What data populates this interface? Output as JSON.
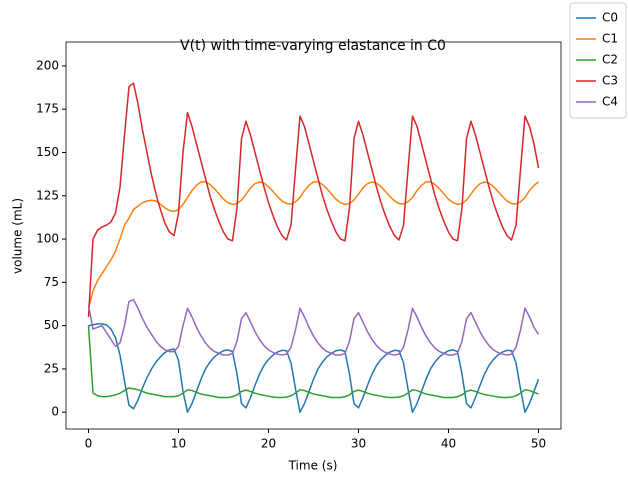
{
  "chart_data": {
    "type": "line",
    "title": "V(t) with time-varying elastance in C0",
    "x_label": "Time (s)",
    "y_label": "volume (mL)",
    "x": [
      0,
      0.5,
      1,
      1.5,
      2,
      2.5,
      3,
      3.5,
      4,
      4.5,
      5,
      5.5,
      6,
      6.5,
      7,
      7.5,
      8,
      8.5,
      9,
      9.5,
      10,
      10.5,
      11,
      11.5,
      12,
      12.5,
      13,
      13.5,
      14,
      14.5,
      15,
      15.5,
      16,
      16.5,
      17,
      17.5,
      18,
      18.5,
      19,
      19.5,
      20,
      20.5,
      21,
      21.5,
      22,
      22.5,
      23,
      23.5,
      24,
      24.5,
      25,
      25.5,
      26,
      26.5,
      27,
      27.5,
      28,
      28.5,
      29,
      29.5,
      30,
      30.5,
      31,
      31.5,
      32,
      32.5,
      33,
      33.5,
      34,
      34.5,
      35,
      35.5,
      36,
      36.5,
      37,
      37.5,
      38,
      38.5,
      39,
      39.5,
      40,
      40.5,
      41,
      41.5,
      42,
      42.5,
      43,
      43.5,
      44,
      44.5,
      45,
      45.5,
      46,
      46.5,
      47,
      47.5,
      48,
      48.5,
      49,
      49.5,
      50
    ],
    "series": [
      {
        "name": "C0",
        "color": "#1f77b4",
        "values": [
          50,
          50.5,
          51,
          51,
          50.5,
          48,
          43,
          33,
          18,
          4,
          2,
          7,
          14,
          20,
          25,
          29,
          32,
          34.5,
          36,
          36.5,
          30,
          12,
          0,
          5,
          12,
          19,
          25,
          29,
          32,
          34,
          35.5,
          36,
          35,
          22,
          5,
          2.5,
          8.5,
          15.5,
          22,
          27,
          30.5,
          33,
          34.75,
          35.75,
          35.5,
          28.5,
          13.5,
          0,
          5,
          12,
          19,
          25,
          29,
          32,
          34,
          35.5,
          36,
          35,
          22,
          5,
          2.5,
          8.5,
          15.5,
          22,
          27,
          30.5,
          33,
          34.75,
          35.75,
          35.5,
          28.5,
          13.5,
          0,
          5,
          12,
          19,
          25,
          29,
          32,
          34,
          35.5,
          36,
          35,
          22,
          5,
          2.5,
          8.5,
          15.5,
          22,
          27,
          30.5,
          33,
          34.75,
          35.75,
          35.5,
          28.5,
          13.5,
          0,
          5,
          12,
          19
        ]
      },
      {
        "name": "C1",
        "color": "#ff7f0e",
        "values": [
          60,
          70,
          76,
          80,
          84,
          88,
          93,
          100,
          108,
          112,
          117,
          119,
          121,
          122,
          122.5,
          122,
          120,
          118,
          116.5,
          116,
          117,
          120,
          124,
          128,
          131,
          133,
          133,
          131.5,
          129,
          126,
          123,
          121,
          120,
          120.5,
          122.5,
          126,
          129.5,
          132,
          133,
          132.25,
          130.25,
          127.5,
          124.5,
          122,
          120.5,
          120.25,
          121.5,
          124,
          128,
          131,
          133,
          133,
          131.5,
          129,
          126,
          123,
          121,
          120,
          120.5,
          122.5,
          126,
          129.5,
          132,
          133,
          132.25,
          130.25,
          127.5,
          124.5,
          122,
          120.5,
          120.25,
          121.5,
          124,
          128,
          131,
          133,
          133,
          131.5,
          129,
          126,
          123,
          121,
          120,
          120.5,
          122.5,
          126,
          129.5,
          132,
          133,
          132.25,
          130.25,
          127.5,
          124.5,
          122,
          120.5,
          120.25,
          121.5,
          124,
          128,
          131,
          133
        ]
      },
      {
        "name": "C2",
        "color": "#2ca02c",
        "values": [
          50,
          11,
          9.5,
          9,
          9,
          9.5,
          10,
          11,
          12.5,
          14,
          13.5,
          13,
          12,
          11,
          10.5,
          10,
          9.5,
          9,
          9,
          9,
          9.5,
          11,
          13,
          12.5,
          11.5,
          10.5,
          10,
          9.5,
          9,
          8.5,
          8.5,
          8.5,
          9,
          10,
          12,
          12.75,
          12,
          11,
          10.25,
          9.75,
          9.25,
          8.75,
          8.5,
          8.5,
          8.75,
          9.5,
          11,
          13,
          12.5,
          11.5,
          10.5,
          10,
          9.5,
          9,
          8.5,
          8.5,
          8.5,
          9,
          10,
          12,
          12.75,
          12,
          11,
          10.25,
          9.75,
          9.25,
          8.75,
          8.5,
          8.5,
          8.75,
          9.5,
          11,
          13,
          12.5,
          11.5,
          10.5,
          10,
          9.5,
          9,
          8.5,
          8.5,
          8.5,
          9,
          10,
          12,
          12.75,
          12,
          11,
          10.25,
          9.75,
          9.25,
          8.75,
          8.5,
          8.5,
          8.75,
          9.5,
          11,
          13,
          12.5,
          11.5,
          10.5
        ]
      },
      {
        "name": "C3",
        "color": "#d62728",
        "values": [
          55,
          100,
          105,
          107,
          108,
          110,
          115,
          130,
          160,
          188,
          190,
          178,
          163,
          150,
          137,
          126,
          117,
          109,
          104,
          102,
          115,
          150,
          173,
          165,
          155,
          145,
          135,
          125,
          117,
          110,
          104,
          100,
          99,
          118,
          158,
          168,
          160,
          150,
          140,
          130,
          121,
          113.5,
          107,
          102,
          99.5,
          108,
          140,
          171,
          165,
          155,
          145,
          135,
          125,
          117,
          110,
          104,
          100,
          99,
          118,
          158,
          168,
          160,
          150,
          140,
          130,
          121,
          113.5,
          107,
          102,
          99.5,
          108,
          140,
          171,
          165,
          155,
          145,
          135,
          125,
          117,
          110,
          104,
          100,
          99,
          118,
          158,
          168,
          160,
          150,
          140,
          130,
          121,
          113.5,
          107,
          102,
          99.5,
          108,
          140,
          171,
          165,
          155,
          141
        ]
      },
      {
        "name": "C4",
        "color": "#9467bd",
        "values": [
          62,
          48,
          49,
          50,
          46,
          42,
          38,
          40,
          50,
          64,
          65,
          60,
          54,
          49,
          45,
          41,
          38,
          36,
          35,
          35,
          38,
          50,
          60,
          55,
          49,
          44,
          40,
          37,
          35,
          34,
          33,
          33,
          34,
          41,
          54,
          57.5,
          52,
          46.5,
          42,
          38.5,
          36,
          34.5,
          33.5,
          33,
          33.5,
          37.5,
          47.5,
          60,
          55,
          49,
          44,
          40,
          37,
          35,
          34,
          33,
          33,
          34,
          41,
          54,
          57.5,
          52,
          46.5,
          42,
          38.5,
          36,
          34.5,
          33.5,
          33,
          33.5,
          37.5,
          47.5,
          60,
          55,
          49,
          44,
          40,
          37,
          35,
          34,
          33,
          33,
          34,
          41,
          54,
          57.5,
          52,
          46.5,
          42,
          38.5,
          36,
          34.5,
          33.5,
          33,
          33.5,
          37.5,
          47.5,
          60,
          55,
          49,
          45
        ]
      }
    ],
    "xlim": [
      -2.5,
      52.5
    ],
    "ylim": [
      -9.7,
      213.8
    ],
    "xticks": [
      0,
      10,
      20,
      30,
      40,
      50
    ],
    "yticks": [
      0,
      25,
      50,
      75,
      100,
      125,
      150,
      175,
      200
    ],
    "legend": "upper right"
  }
}
